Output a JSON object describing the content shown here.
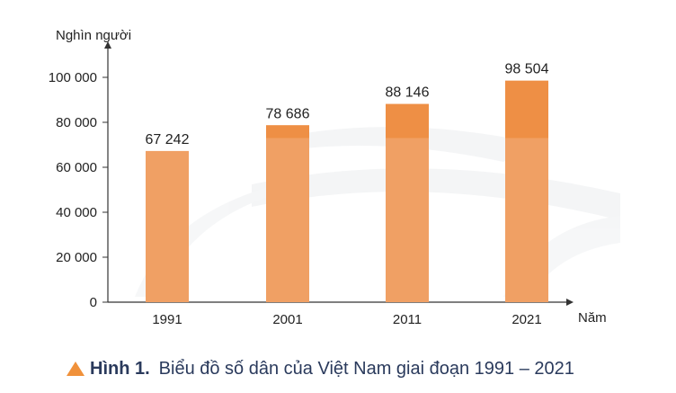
{
  "chart_data": {
    "type": "bar",
    "categories": [
      "1991",
      "2001",
      "2011",
      "2021"
    ],
    "values": [
      67242,
      78686,
      88146,
      98504
    ],
    "value_labels": [
      "67 242",
      "78 686",
      "88 146",
      "98 504"
    ],
    "ylabel": "Nghìn người",
    "xlabel": "Năm",
    "ylim": [
      0,
      100000
    ],
    "yticks": [
      0,
      20000,
      40000,
      60000,
      80000,
      100000
    ],
    "ytick_labels": [
      "0",
      "20 000",
      "40 000",
      "60 000",
      "80 000",
      "100 000"
    ],
    "grid": false,
    "legend": "none",
    "bar_color": "#f0a064",
    "bar_top_color": "#ee8f45"
  },
  "caption": {
    "label": "Hình 1.",
    "title": "Biểu đồ số dân của Việt Nam giai đoạn 1991 – 2021",
    "icon": "triangle-icon",
    "color": "#2a3a5c",
    "accent": "#f0913a"
  }
}
